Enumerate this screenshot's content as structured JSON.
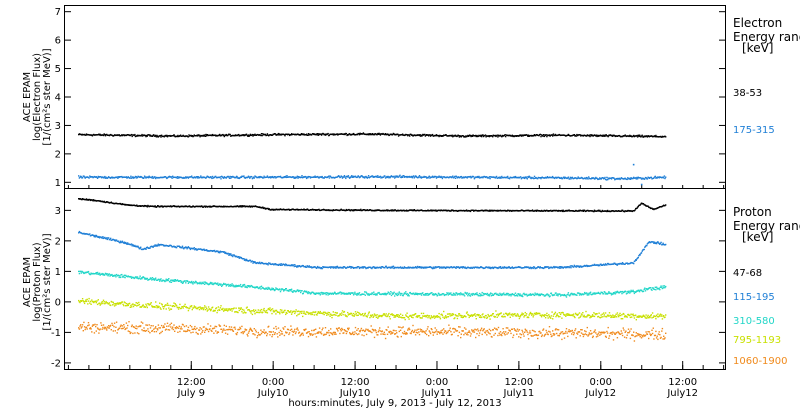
{
  "chart_data": [
    {
      "type": "scatter",
      "ylabel_lines": [
        "ACE EPAM",
        "log(Electron Flux)",
        "[1/(cm²s ster MeV)]"
      ],
      "ylim": [
        0.8,
        7.2
      ],
      "yticks": [
        1,
        2,
        3,
        4,
        5,
        6,
        7
      ],
      "legend_title_lines": [
        "Electron",
        "Energy ranges",
        "[keV]"
      ],
      "legend_placement": "right",
      "series": [
        {
          "name": "38-53",
          "color": "#000000",
          "profile": [
            [
              0,
              2.7
            ],
            [
              120,
              2.65
            ],
            [
              240,
              2.7
            ],
            [
              360,
              2.72
            ],
            [
              480,
              2.65
            ],
            [
              600,
              2.68
            ],
            [
              730,
              2.63
            ]
          ],
          "noise": 0.05
        },
        {
          "name": "175-315",
          "color": "#1f7fd6",
          "profile": [
            [
              0,
              1.2
            ],
            [
              200,
              1.2
            ],
            [
              400,
              1.22
            ],
            [
              600,
              1.18
            ],
            [
              680,
              1.15
            ],
            [
              730,
              1.2
            ]
          ],
          "noise": 0.06,
          "outliers": [
            [
              690,
              1.65
            ],
            [
              700,
              0.95
            ]
          ]
        }
      ]
    },
    {
      "type": "scatter",
      "ylabel_lines": [
        "ACE EPAM",
        "log(Proton Flux)",
        "[1/(cm²s ster MeV)]"
      ],
      "ylim": [
        -2.2,
        3.7
      ],
      "yticks": [
        -2,
        -1,
        0,
        1,
        2,
        3
      ],
      "xlabel": "hours:minutes, July  9, 2013 - July 12, 2013",
      "x_unit": "hours since July 9 00:00",
      "xlim": [
        -6.5,
        90.2
      ],
      "xticks": [
        {
          "x": 12,
          "time": "12:00",
          "date": "July 9"
        },
        {
          "x": 24,
          "time": "0:00",
          "date": "July10"
        },
        {
          "x": 36,
          "time": "12:00",
          "date": "July10"
        },
        {
          "x": 48,
          "time": "0:00",
          "date": "July11"
        },
        {
          "x": 60,
          "time": "12:00",
          "date": "July11"
        },
        {
          "x": 72,
          "time": "0:00",
          "date": "July12"
        },
        {
          "x": 84,
          "time": "12:00",
          "date": "July12"
        }
      ],
      "legend_title_lines": [
        "Proton",
        "Energy ranges",
        "[keV]"
      ],
      "legend_placement": "right",
      "series": [
        {
          "name": "47-68",
          "color": "#000000",
          "profile": [
            [
              0,
              3.4
            ],
            [
              20,
              3.35
            ],
            [
              60,
              3.2
            ],
            [
              90,
              3.15
            ],
            [
              220,
              3.15
            ],
            [
              240,
              3.05
            ],
            [
              400,
              3.02
            ],
            [
              690,
              3.0
            ],
            [
              700,
              3.25
            ],
            [
              715,
              3.05
            ],
            [
              730,
              3.2
            ]
          ],
          "noise": 0.03
        },
        {
          "name": "115-195",
          "color": "#1f7fd6",
          "profile": [
            [
              0,
              2.3
            ],
            [
              60,
              1.95
            ],
            [
              80,
              1.75
            ],
            [
              100,
              1.9
            ],
            [
              180,
              1.65
            ],
            [
              220,
              1.3
            ],
            [
              300,
              1.15
            ],
            [
              600,
              1.15
            ],
            [
              690,
              1.3
            ],
            [
              710,
              2.0
            ],
            [
              730,
              1.9
            ]
          ],
          "noise": 0.05
        },
        {
          "name": "310-580",
          "color": "#22d6c8",
          "profile": [
            [
              0,
              1.0
            ],
            [
              100,
              0.75
            ],
            [
              200,
              0.55
            ],
            [
              300,
              0.3
            ],
            [
              600,
              0.25
            ],
            [
              690,
              0.35
            ],
            [
              710,
              0.45
            ],
            [
              730,
              0.5
            ]
          ],
          "noise": 0.08
        },
        {
          "name": "795-1193",
          "color": "#c8e000",
          "profile": [
            [
              0,
              0.05
            ],
            [
              120,
              -0.15
            ],
            [
              250,
              -0.3
            ],
            [
              400,
              -0.45
            ],
            [
              600,
              -0.4
            ],
            [
              730,
              -0.45
            ]
          ],
          "noise": 0.15
        },
        {
          "name": "1060-1900",
          "color": "#f08a1c",
          "profile": [
            [
              0,
              -0.8
            ],
            [
              120,
              -0.85
            ],
            [
              250,
              -0.95
            ],
            [
              400,
              -0.95
            ],
            [
              600,
              -1.0
            ],
            [
              730,
              -1.05
            ]
          ],
          "noise": 0.25
        }
      ]
    }
  ]
}
